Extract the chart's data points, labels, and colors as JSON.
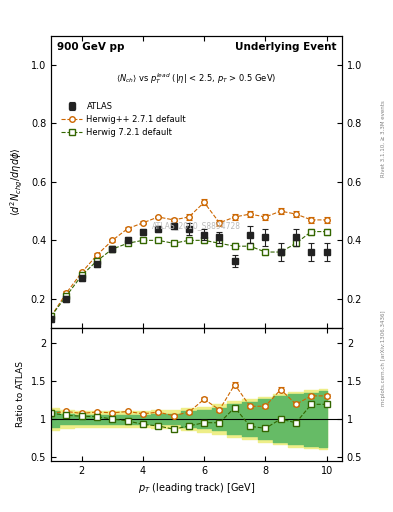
{
  "title_left": "900 GeV pp",
  "title_right": "Underlying Event",
  "ylabel_main": "$\\langle d^2 N_{chg}/d\\eta d\\phi \\rangle$",
  "ylabel_ratio": "Ratio to ATLAS",
  "xlabel": "$p_T$ (leading track) [GeV]",
  "plot_label": "$\\langle N_{ch} \\rangle$ vs $p_T^{lead}$ (|$\\eta$| < 2.5, $p_T$ > 0.5 GeV)",
  "watermark": "ATLAS_2010_S8894728",
  "side_label_top": "Rivet 3.1.10, ≥ 3.3M events",
  "side_label_bot": "mcplots.cern.ch [arXiv:1306.3436]",
  "ylim_main": [
    0.1,
    1.1
  ],
  "ylim_ratio": [
    0.45,
    2.2
  ],
  "xlim": [
    1.0,
    10.5
  ],
  "atlas_x": [
    1.0,
    1.5,
    2.0,
    2.5,
    3.0,
    3.5,
    4.0,
    4.5,
    5.0,
    5.5,
    6.0,
    6.5,
    7.0,
    7.5,
    8.0,
    8.5,
    9.0,
    9.5,
    10.0
  ],
  "atlas_y": [
    0.13,
    0.2,
    0.27,
    0.32,
    0.37,
    0.4,
    0.43,
    0.44,
    0.45,
    0.44,
    0.42,
    0.41,
    0.33,
    0.42,
    0.41,
    0.36,
    0.41,
    0.36,
    0.36
  ],
  "atlas_yerr": [
    0.01,
    0.01,
    0.01,
    0.01,
    0.01,
    0.01,
    0.01,
    0.01,
    0.01,
    0.02,
    0.02,
    0.02,
    0.02,
    0.03,
    0.03,
    0.03,
    0.03,
    0.03,
    0.03
  ],
  "hwpp_x": [
    1.0,
    1.5,
    2.0,
    2.5,
    3.0,
    3.5,
    4.0,
    4.5,
    5.0,
    5.5,
    6.0,
    6.5,
    7.0,
    7.5,
    8.0,
    8.5,
    9.0,
    9.5,
    10.0
  ],
  "hwpp_y": [
    0.14,
    0.22,
    0.29,
    0.35,
    0.4,
    0.44,
    0.46,
    0.48,
    0.47,
    0.48,
    0.53,
    0.46,
    0.48,
    0.49,
    0.48,
    0.5,
    0.49,
    0.47,
    0.47
  ],
  "hwpp_yerr": [
    0.005,
    0.005,
    0.005,
    0.005,
    0.005,
    0.005,
    0.005,
    0.005,
    0.005,
    0.01,
    0.01,
    0.01,
    0.01,
    0.01,
    0.01,
    0.01,
    0.01,
    0.01,
    0.01
  ],
  "hw72_x": [
    1.0,
    1.5,
    2.0,
    2.5,
    3.0,
    3.5,
    4.0,
    4.5,
    5.0,
    5.5,
    6.0,
    6.5,
    7.0,
    7.5,
    8.0,
    8.5,
    9.0,
    9.5,
    10.0
  ],
  "hw72_y": [
    0.14,
    0.21,
    0.28,
    0.33,
    0.37,
    0.39,
    0.4,
    0.4,
    0.39,
    0.4,
    0.4,
    0.39,
    0.38,
    0.38,
    0.36,
    0.36,
    0.39,
    0.43,
    0.43
  ],
  "hw72_yerr": [
    0.005,
    0.005,
    0.005,
    0.005,
    0.005,
    0.005,
    0.005,
    0.005,
    0.005,
    0.01,
    0.01,
    0.01,
    0.01,
    0.01,
    0.01,
    0.01,
    0.01,
    0.01,
    0.01
  ],
  "atlas_band_x": [
    1.0,
    1.5,
    2.0,
    2.5,
    3.0,
    3.5,
    4.0,
    4.5,
    5.0,
    5.5,
    6.0,
    6.5,
    7.0,
    7.5,
    8.0,
    8.5,
    9.0,
    9.5,
    10.0
  ],
  "atlas_band_lo": [
    0.9,
    0.93,
    0.94,
    0.94,
    0.94,
    0.94,
    0.94,
    0.93,
    0.93,
    0.9,
    0.88,
    0.85,
    0.8,
    0.78,
    0.74,
    0.7,
    0.67,
    0.65,
    0.63
  ],
  "atlas_band_hi": [
    1.1,
    1.07,
    1.06,
    1.06,
    1.06,
    1.06,
    1.06,
    1.07,
    1.07,
    1.1,
    1.12,
    1.15,
    1.2,
    1.22,
    1.26,
    1.3,
    1.33,
    1.35,
    1.37
  ],
  "atlas_band_lo2": [
    0.855,
    0.884,
    0.893,
    0.893,
    0.893,
    0.893,
    0.893,
    0.884,
    0.884,
    0.855,
    0.836,
    0.808,
    0.76,
    0.741,
    0.703,
    0.665,
    0.637,
    0.618,
    0.599
  ],
  "atlas_band_hi2": [
    1.145,
    1.116,
    1.107,
    1.107,
    1.107,
    1.107,
    1.107,
    1.116,
    1.116,
    1.145,
    1.164,
    1.192,
    1.24,
    1.259,
    1.297,
    1.335,
    1.363,
    1.382,
    1.401
  ],
  "color_atlas": "#222222",
  "color_hwpp": "#cc6600",
  "color_hw72": "#336600",
  "color_band_green": "#66bb66",
  "color_band_yellow": "#eeee88",
  "legend_entries": [
    "ATLAS",
    "Herwig++ 2.7.1 default",
    "Herwig 7.2.1 default"
  ]
}
